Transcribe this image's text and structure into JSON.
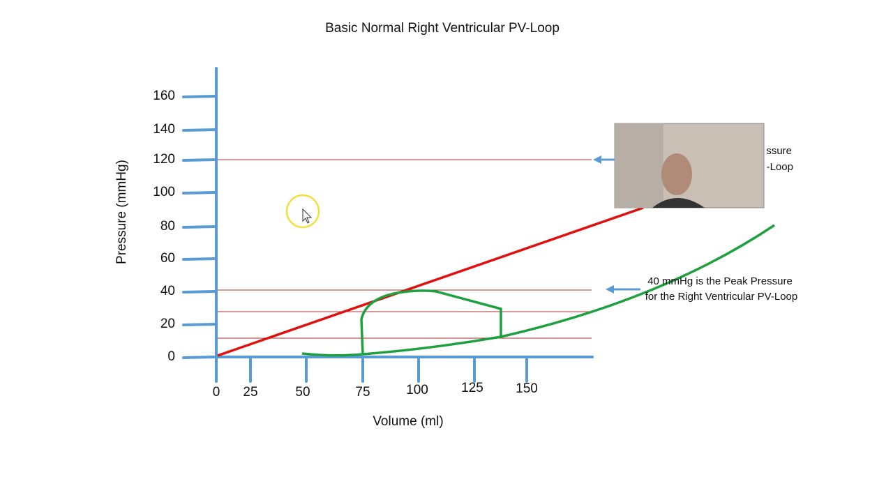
{
  "title": "Basic Normal Right Ventricular PV-Loop",
  "y_axis": {
    "label": "Pressure (mmHg)",
    "ticks": [
      160,
      140,
      120,
      100,
      80,
      60,
      40,
      20,
      0
    ]
  },
  "x_axis": {
    "label": "Volume (ml)",
    "ticks": [
      0,
      25,
      50,
      75,
      100,
      125,
      150
    ]
  },
  "annotations": [
    {
      "lines": [
        "ssure",
        "-Loop"
      ]
    },
    {
      "lines": [
        "40 mmHg is the Peak Pressure",
        "for the Right Ventricular PV-Loop"
      ]
    }
  ]
}
